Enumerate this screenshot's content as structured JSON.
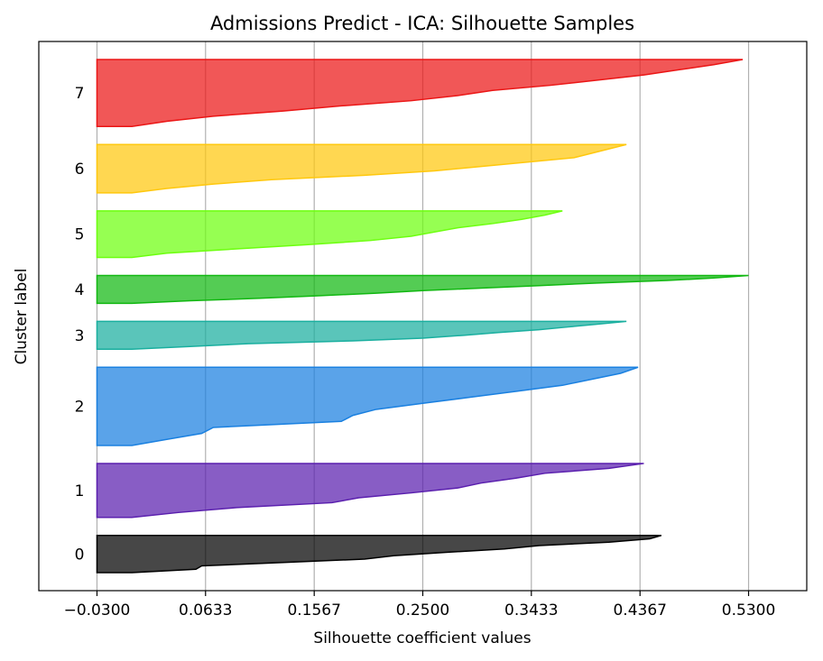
{
  "chart_data": {
    "type": "area",
    "title": "Admissions Predict - ICA: Silhouette Samples",
    "xlabel": "Silhouette coefficient values",
    "ylabel": "Cluster label",
    "xlim": [
      -0.08,
      0.58
    ],
    "x_ticks": [
      -0.03,
      0.0633,
      0.1567,
      0.25,
      0.3433,
      0.4367,
      0.53
    ],
    "x_tick_labels": [
      "−0.0300",
      "0.0633",
      "0.1567",
      "0.2500",
      "0.3433",
      "0.4367",
      "0.5300"
    ],
    "grid": "vertical",
    "clusters": [
      {
        "label": "0",
        "color": "#000000",
        "size": 40,
        "silhouette": [
          0.455,
          0.445,
          0.41,
          0.35,
          0.32,
          0.27,
          0.225,
          0.2,
          0.13,
          0.06,
          0.055,
          0.0
        ]
      },
      {
        "label": "1",
        "color": "#5a1fae",
        "size": 58,
        "silhouette": [
          0.44,
          0.41,
          0.355,
          0.33,
          0.3,
          0.28,
          0.24,
          0.195,
          0.172,
          0.09,
          0.04,
          0.0
        ]
      },
      {
        "label": "2",
        "color": "#1a80e0",
        "size": 84,
        "silhouette": [
          0.435,
          0.42,
          0.395,
          0.37,
          0.33,
          0.29,
          0.25,
          0.21,
          0.19,
          0.18,
          0.07,
          0.06,
          0.03,
          0.0
        ]
      },
      {
        "label": "3",
        "color": "#1aaf9f",
        "size": 30,
        "silhouette": [
          0.425,
          0.4,
          0.375,
          0.35,
          0.315,
          0.285,
          0.25,
          0.19,
          0.1,
          0.05,
          0.0
        ]
      },
      {
        "label": "4",
        "color": "#12b812",
        "size": 30,
        "silhouette": [
          0.53,
          0.5,
          0.46,
          0.4,
          0.35,
          0.3,
          0.25,
          0.21,
          0.16,
          0.11,
          0.05,
          0.0
        ]
      },
      {
        "label": "5",
        "color": "#6dff0f",
        "size": 50,
        "silhouette": [
          0.37,
          0.355,
          0.335,
          0.31,
          0.28,
          0.26,
          0.24,
          0.205,
          0.15,
          0.09,
          0.03,
          0.0
        ]
      },
      {
        "label": "6",
        "color": "#ffc80e",
        "size": 52,
        "silhouette": [
          0.425,
          0.41,
          0.395,
          0.38,
          0.34,
          0.3,
          0.26,
          0.2,
          0.12,
          0.07,
          0.03,
          0.0
        ]
      },
      {
        "label": "7",
        "color": "#eb1616",
        "size": 72,
        "silhouette": [
          0.525,
          0.5,
          0.47,
          0.44,
          0.4,
          0.36,
          0.31,
          0.28,
          0.24,
          0.18,
          0.13,
          0.07,
          0.03,
          0.0
        ]
      }
    ]
  }
}
